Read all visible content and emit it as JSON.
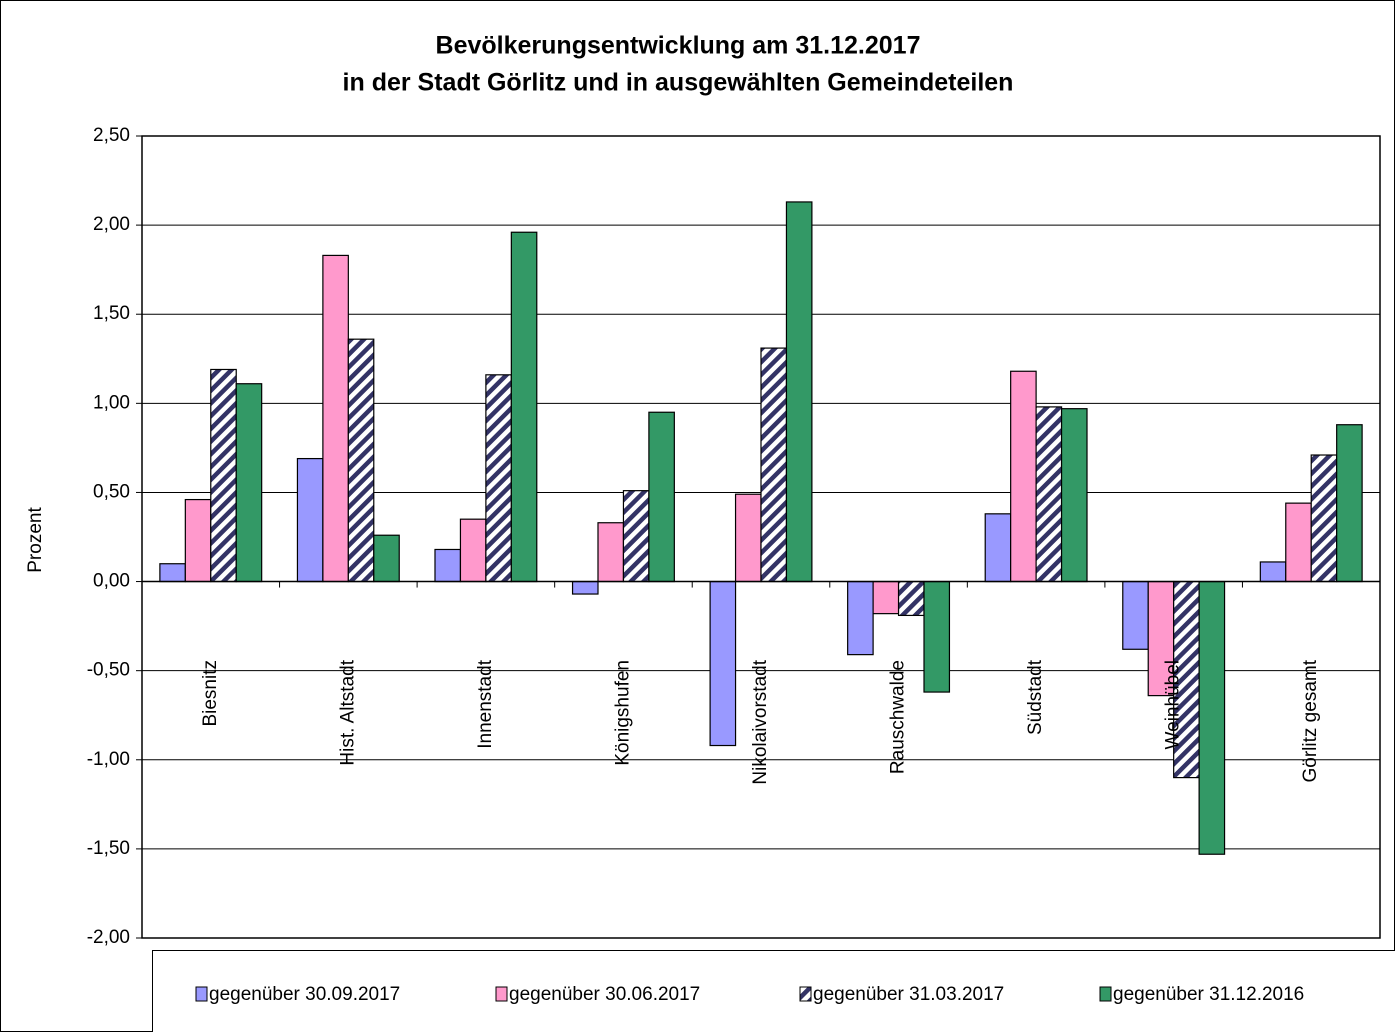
{
  "chart_data": {
    "type": "bar",
    "title": [
      "Bevölkerungsentwicklung am 31.12.2017",
      "in der Stadt Görlitz und in ausgewählten Gemeindeteilen"
    ],
    "ylabel": "Prozent",
    "categories": [
      "Biesnitz",
      "Hist. Altstadt",
      "Innenstadt",
      "Königshufen",
      "Nikolaivorstadt",
      "Rauschwalde",
      "Südstadt",
      "Weinhübel",
      "Görlitz gesamt"
    ],
    "series": [
      {
        "name": "gegenüber 30.09.2017",
        "color": "#9999ff",
        "values": [
          0.1,
          0.69,
          0.18,
          -0.07,
          -0.92,
          -0.41,
          0.38,
          -0.38,
          0.11
        ]
      },
      {
        "name": "gegenüber 30.06.2017",
        "color": "#ff99cc",
        "values": [
          0.46,
          1.83,
          0.35,
          0.33,
          0.49,
          -0.18,
          1.18,
          -0.64,
          0.44
        ]
      },
      {
        "name": "gegenüber 31.03.2017",
        "color": "#333366",
        "hatch": true,
        "values": [
          1.19,
          1.36,
          1.16,
          0.51,
          1.31,
          -0.19,
          0.98,
          -1.1,
          0.71
        ]
      },
      {
        "name": "gegenüber 31.12.2016",
        "color": "#339966",
        "values": [
          1.11,
          0.26,
          1.96,
          0.95,
          2.13,
          -0.62,
          0.97,
          -1.53,
          0.88
        ]
      }
    ],
    "ylim": [
      -2,
      2.5
    ],
    "yticks": [
      {
        "value": -2,
        "label": "-2,00"
      },
      {
        "value": -1.5,
        "label": "-1,50"
      },
      {
        "value": -1,
        "label": "-1,00"
      },
      {
        "value": -0.5,
        "label": "-0,50"
      },
      {
        "value": 0,
        "label": "0,00"
      },
      {
        "value": 0.5,
        "label": "0,50"
      },
      {
        "value": 1,
        "label": "1,00"
      },
      {
        "value": 1.5,
        "label": "1,50"
      },
      {
        "value": 2,
        "label": "2,00"
      },
      {
        "value": 2.5,
        "label": "2,50"
      }
    ],
    "grid": true,
    "legend": "bottom"
  }
}
